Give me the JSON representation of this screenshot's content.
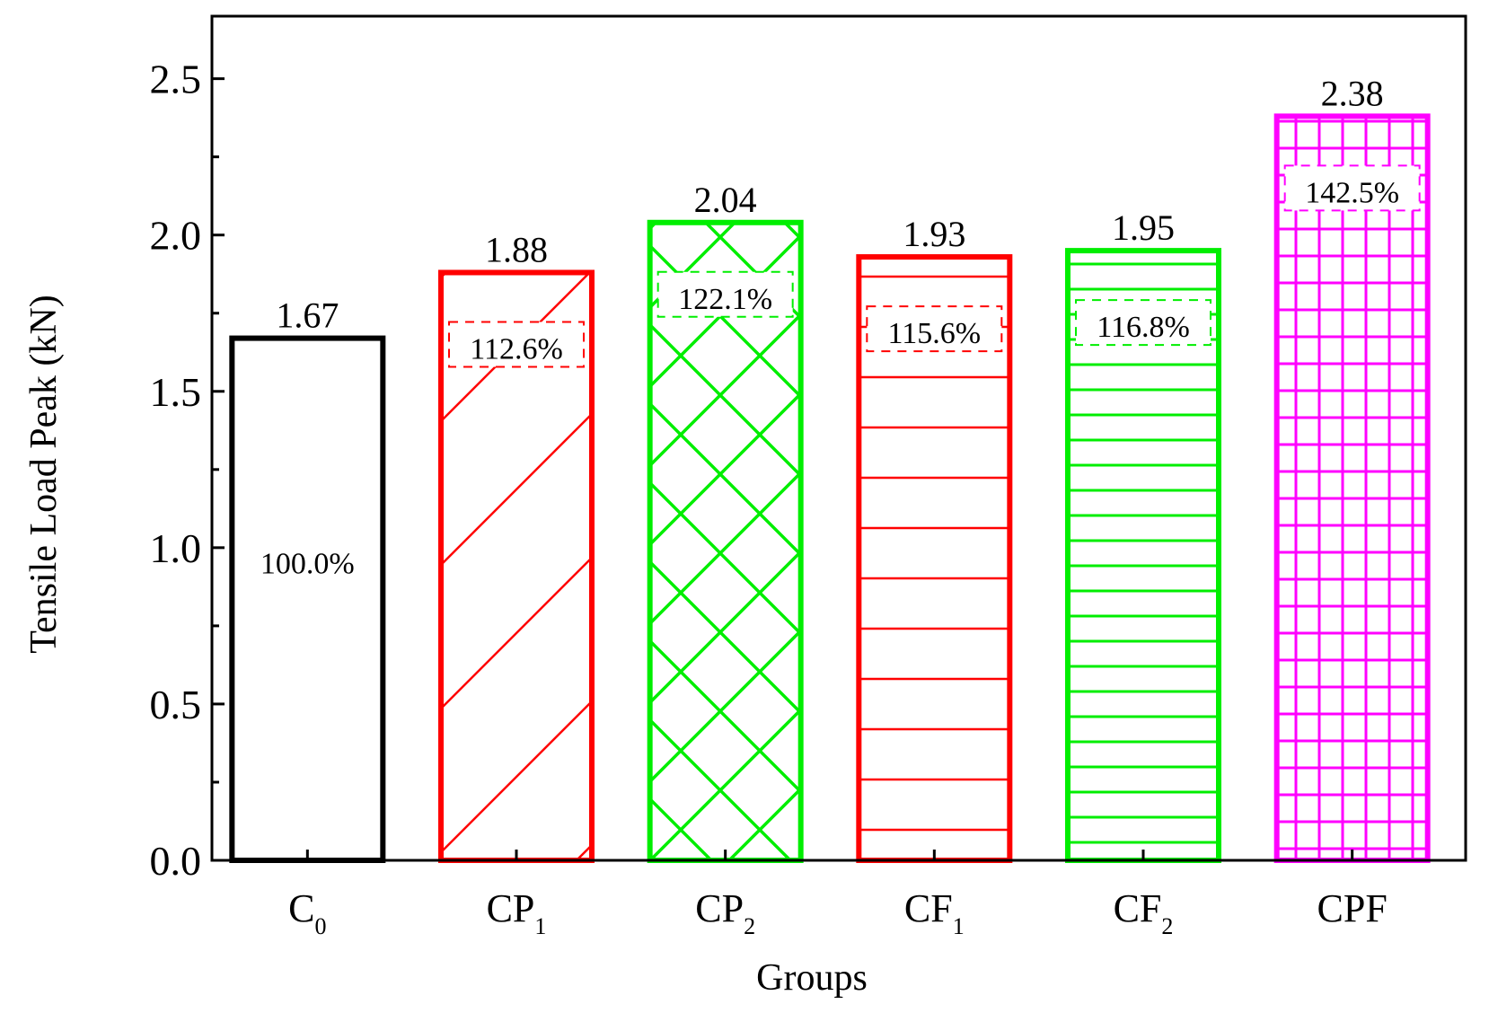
{
  "chart_data": {
    "type": "bar",
    "title": "",
    "xlabel": "Groups",
    "ylabel": "Tensile Load Peak (kN)",
    "ylim": [
      0,
      2.7
    ],
    "yticks": [
      "0.0",
      "0.5",
      "1.0",
      "1.5",
      "2.0",
      "2.5"
    ],
    "grid": false,
    "categories": [
      {
        "name": "C",
        "sub": "0"
      },
      {
        "name": "CP",
        "sub": "1"
      },
      {
        "name": "CP",
        "sub": "2"
      },
      {
        "name": "CF",
        "sub": "1"
      },
      {
        "name": "CF",
        "sub": "2"
      },
      {
        "name": "CPF",
        "sub": ""
      }
    ],
    "values": [
      1.67,
      1.88,
      2.04,
      1.93,
      1.95,
      2.38
    ],
    "value_labels": [
      "1.67",
      "1.88",
      "2.04",
      "1.93",
      "1.95",
      "2.38"
    ],
    "percent_labels": [
      "100.0%",
      "112.6%",
      "122.1%",
      "115.6%",
      "116.8%",
      "142.5%"
    ],
    "colors": [
      "#000000",
      "#ff0000",
      "#00ee00",
      "#ff0000",
      "#00ee00",
      "#ff00ff"
    ],
    "patterns": [
      "none",
      "diagonal",
      "crosshatch-diagonal",
      "horizontal",
      "horizontal-dense",
      "grid"
    ]
  }
}
